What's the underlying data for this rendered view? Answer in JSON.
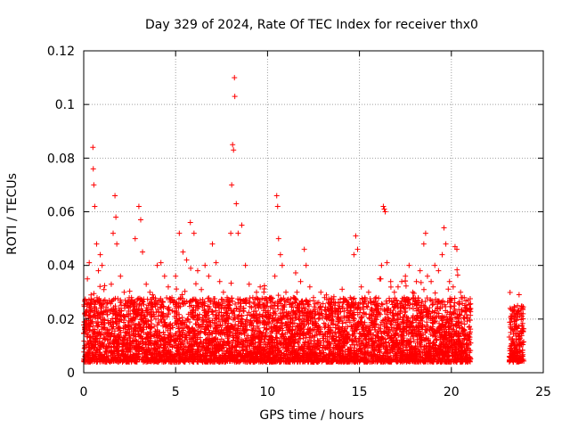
{
  "chart_data": {
    "type": "scatter",
    "title": "Day 329 of 2024, Rate Of TEC Index for receiver thx0",
    "xlabel": "GPS time / hours",
    "ylabel": "ROTI / TECUs",
    "xlim": [
      0,
      25
    ],
    "ylim": [
      0,
      0.12
    ],
    "x_ticks": [
      0,
      5,
      10,
      15,
      20,
      25
    ],
    "y_ticks": [
      0,
      0.02,
      0.04,
      0.06,
      0.08,
      0.1,
      0.12
    ],
    "x_tick_labels": [
      "0",
      "5",
      "10",
      "15",
      "20",
      "25"
    ],
    "y_tick_labels": [
      "0",
      "0.02",
      "0.04",
      "0.06",
      "0.08",
      "0.1",
      "0.12"
    ],
    "grid": true,
    "legend": "none",
    "marker": "plus",
    "color": "#ff0000",
    "series": [
      {
        "points": [
          [
            0.1,
            0.018
          ],
          [
            0.2,
            0.035
          ],
          [
            0.3,
            0.041
          ],
          [
            0.4,
            0.029
          ],
          [
            0.5,
            0.084
          ],
          [
            0.52,
            0.076
          ],
          [
            0.55,
            0.07
          ],
          [
            0.6,
            0.062
          ],
          [
            0.7,
            0.048
          ],
          [
            0.8,
            0.038
          ],
          [
            0.9,
            0.044
          ],
          [
            1.0,
            0.04
          ],
          [
            1.1,
            0.031
          ],
          [
            1.3,
            0.026
          ],
          [
            1.5,
            0.033
          ],
          [
            1.6,
            0.052
          ],
          [
            1.7,
            0.066
          ],
          [
            1.75,
            0.058
          ],
          [
            1.8,
            0.048
          ],
          [
            2.0,
            0.036
          ],
          [
            2.2,
            0.03
          ],
          [
            2.4,
            0.026
          ],
          [
            2.6,
            0.028
          ],
          [
            2.8,
            0.05
          ],
          [
            3.0,
            0.062
          ],
          [
            3.1,
            0.057
          ],
          [
            3.2,
            0.045
          ],
          [
            3.4,
            0.033
          ],
          [
            3.6,
            0.03
          ],
          [
            3.8,
            0.028
          ],
          [
            4.0,
            0.04
          ],
          [
            4.2,
            0.041
          ],
          [
            4.4,
            0.036
          ],
          [
            4.6,
            0.032
          ],
          [
            4.8,
            0.028
          ],
          [
            5.0,
            0.036
          ],
          [
            5.2,
            0.052
          ],
          [
            5.4,
            0.045
          ],
          [
            5.6,
            0.042
          ],
          [
            5.8,
            0.056
          ],
          [
            6.0,
            0.052
          ],
          [
            6.2,
            0.038
          ],
          [
            6.4,
            0.031
          ],
          [
            6.6,
            0.04
          ],
          [
            6.8,
            0.036
          ],
          [
            7.0,
            0.048
          ],
          [
            7.2,
            0.041
          ],
          [
            7.4,
            0.034
          ],
          [
            7.6,
            0.03
          ],
          [
            7.8,
            0.028
          ],
          [
            8.0,
            0.052
          ],
          [
            8.05,
            0.07
          ],
          [
            8.1,
            0.085
          ],
          [
            8.15,
            0.083
          ],
          [
            8.2,
            0.11
          ],
          [
            8.22,
            0.103
          ],
          [
            8.3,
            0.063
          ],
          [
            8.4,
            0.052
          ],
          [
            8.6,
            0.055
          ],
          [
            8.8,
            0.04
          ],
          [
            9.0,
            0.033
          ],
          [
            9.2,
            0.028
          ],
          [
            9.4,
            0.03
          ],
          [
            9.6,
            0.032
          ],
          [
            9.8,
            0.03
          ],
          [
            10.0,
            0.026
          ],
          [
            10.2,
            0.028
          ],
          [
            10.4,
            0.036
          ],
          [
            10.5,
            0.066
          ],
          [
            10.55,
            0.062
          ],
          [
            10.6,
            0.05
          ],
          [
            10.7,
            0.044
          ],
          [
            10.8,
            0.04
          ],
          [
            11.0,
            0.03
          ],
          [
            11.2,
            0.026
          ],
          [
            11.4,
            0.028
          ],
          [
            11.6,
            0.03
          ],
          [
            11.8,
            0.034
          ],
          [
            12.0,
            0.046
          ],
          [
            12.1,
            0.04
          ],
          [
            12.3,
            0.032
          ],
          [
            12.5,
            0.028
          ],
          [
            12.7,
            0.026
          ],
          [
            12.9,
            0.03
          ],
          [
            13.1,
            0.028
          ],
          [
            13.3,
            0.026
          ],
          [
            13.5,
            0.024
          ],
          [
            13.7,
            0.022
          ],
          [
            13.9,
            0.024
          ],
          [
            14.1,
            0.026
          ],
          [
            14.3,
            0.024
          ],
          [
            14.5,
            0.028
          ],
          [
            14.7,
            0.044
          ],
          [
            14.8,
            0.051
          ],
          [
            14.9,
            0.046
          ],
          [
            15.1,
            0.032
          ],
          [
            15.3,
            0.028
          ],
          [
            15.5,
            0.03
          ],
          [
            15.7,
            0.026
          ],
          [
            15.9,
            0.028
          ],
          [
            16.1,
            0.035
          ],
          [
            16.2,
            0.04
          ],
          [
            16.3,
            0.062
          ],
          [
            16.35,
            0.061
          ],
          [
            16.4,
            0.06
          ],
          [
            16.5,
            0.041
          ],
          [
            16.7,
            0.034
          ],
          [
            16.9,
            0.03
          ],
          [
            17.1,
            0.032
          ],
          [
            17.3,
            0.034
          ],
          [
            17.5,
            0.036
          ],
          [
            17.7,
            0.04
          ],
          [
            17.9,
            0.03
          ],
          [
            18.1,
            0.034
          ],
          [
            18.3,
            0.038
          ],
          [
            18.5,
            0.048
          ],
          [
            18.6,
            0.052
          ],
          [
            18.7,
            0.036
          ],
          [
            18.9,
            0.034
          ],
          [
            19.1,
            0.04
          ],
          [
            19.3,
            0.038
          ],
          [
            19.5,
            0.044
          ],
          [
            19.6,
            0.054
          ],
          [
            19.7,
            0.048
          ],
          [
            19.9,
            0.034
          ],
          [
            20.1,
            0.032
          ],
          [
            20.2,
            0.047
          ],
          [
            20.3,
            0.046
          ],
          [
            20.5,
            0.03
          ],
          [
            20.7,
            0.028
          ],
          [
            20.9,
            0.027
          ],
          [
            21.0,
            0.024
          ],
          [
            23.2,
            0.024
          ],
          [
            23.4,
            0.022
          ],
          [
            23.6,
            0.025
          ],
          [
            23.8,
            0.024
          ],
          [
            23.9,
            0.022
          ]
        ],
        "bands": [
          [
            0.0,
            21.05,
            0.004,
            0.028
          ],
          [
            23.15,
            23.95,
            0.004,
            0.025
          ]
        ]
      }
    ]
  }
}
